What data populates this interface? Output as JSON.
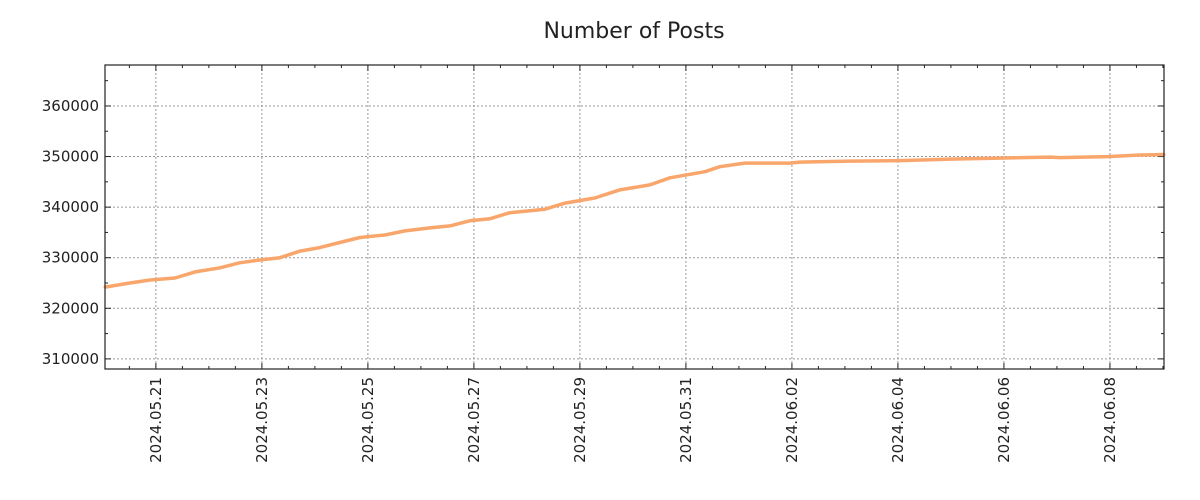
{
  "chart_data": {
    "type": "line",
    "title": "Number of Posts",
    "xlabel": "",
    "ylabel": "",
    "x_origin": "2024-05-20",
    "x_unit": "days since x_origin",
    "xlim": [
      0.04,
      20.02
    ],
    "ylim": [
      308000,
      368100
    ],
    "grid": true,
    "line_color": "#f9a66c",
    "x_ticks": [
      {
        "value": 1,
        "label": "2024.05.21"
      },
      {
        "value": 3,
        "label": "2024.05.23"
      },
      {
        "value": 5,
        "label": "2024.05.25"
      },
      {
        "value": 7,
        "label": "2024.05.27"
      },
      {
        "value": 9,
        "label": "2024.05.29"
      },
      {
        "value": 11,
        "label": "2024.05.31"
      },
      {
        "value": 13,
        "label": "2024.06.02"
      },
      {
        "value": 15,
        "label": "2024.06.04"
      },
      {
        "value": 17,
        "label": "2024.06.06"
      },
      {
        "value": 19,
        "label": "2024.06.08"
      }
    ],
    "y_ticks": [
      {
        "value": 310000,
        "label": "310000"
      },
      {
        "value": 320000,
        "label": "320000"
      },
      {
        "value": 330000,
        "label": "330000"
      },
      {
        "value": 340000,
        "label": "340000"
      },
      {
        "value": 350000,
        "label": "350000"
      },
      {
        "value": 360000,
        "label": "360000"
      }
    ],
    "series": [
      {
        "name": "Number of Posts",
        "x": [
          0.04,
          0.51,
          0.89,
          1.36,
          1.74,
          2.21,
          2.58,
          3.0,
          3.34,
          3.72,
          4.09,
          4.47,
          4.85,
          5.32,
          5.7,
          6.17,
          6.55,
          6.92,
          7.3,
          7.68,
          8.34,
          8.72,
          9.28,
          9.75,
          10.32,
          10.7,
          11.36,
          11.64,
          12.11,
          12.96,
          13.15,
          14.09,
          15.04,
          15.98,
          16.92,
          17.87,
          18.06,
          18.96,
          19.57,
          20.02
        ],
        "y": [
          324200,
          325000,
          325600,
          326000,
          327200,
          328000,
          329000,
          329600,
          330000,
          331300,
          332000,
          333000,
          334000,
          334500,
          335300,
          335900,
          336300,
          337300,
          337700,
          338900,
          339600,
          340800,
          341800,
          343400,
          344400,
          345800,
          347000,
          348000,
          348700,
          348700,
          348900,
          349100,
          349200,
          349500,
          349700,
          349900,
          349800,
          350000,
          350300,
          350400
        ]
      }
    ]
  }
}
